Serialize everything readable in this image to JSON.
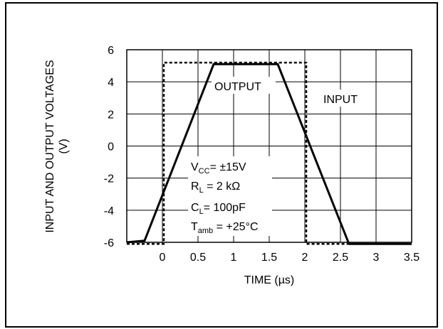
{
  "chart_data": {
    "type": "line",
    "xlabel": "TIME (µs)",
    "ylabel_line1": "INPUT AND OUTPUT VOLTAGES",
    "ylabel_line2": "(V)",
    "xlim": [
      -0.5,
      3.5
    ],
    "ylim": [
      -6,
      6
    ],
    "x_ticks": [
      0,
      0.5,
      1,
      1.5,
      2,
      2.5,
      3,
      3.5
    ],
    "x_tick_labels": [
      "0",
      "0.5",
      "1",
      "1.5",
      "2",
      "2.5",
      "3",
      "3.5"
    ],
    "y_ticks": [
      6,
      4,
      2,
      0,
      -2,
      -4,
      -6
    ],
    "y_tick_labels": [
      "6",
      "4",
      "2",
      "0",
      "-2",
      "-4",
      "-6"
    ],
    "grid": true,
    "series": [
      {
        "name": "OUTPUT",
        "style": "solid",
        "x": [
          -0.5,
          -0.25,
          0.72,
          1.62,
          2.62,
          3.5
        ],
        "y": [
          -6.0,
          -5.9,
          5.1,
          5.1,
          -6.1,
          -6.1
        ]
      },
      {
        "name": "INPUT",
        "style": "dashed",
        "x": [
          -0.5,
          0.02,
          0.02,
          2.02,
          2.02,
          3.5
        ],
        "y": [
          -6.1,
          -6.1,
          5.2,
          5.2,
          -6.1,
          -6.1
        ]
      }
    ],
    "annotations": {
      "output_label": "OUTPUT",
      "input_label": "INPUT",
      "vcc_main": "V",
      "vcc_sub": "CC",
      "vcc_value": "= ±15V",
      "rl_main": "R",
      "rl_sub": "L",
      "rl_value": " = 2 kΩ",
      "cl_main": "C",
      "cl_sub": "L",
      "cl_value": "= 100pF",
      "tamb_main": "T",
      "tamb_sub": "amb",
      "tamb_value": " = +25°C"
    }
  }
}
